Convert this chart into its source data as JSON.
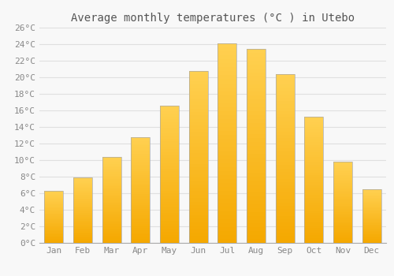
{
  "title": "Average monthly temperatures (°C ) in Utebo",
  "months": [
    "Jan",
    "Feb",
    "Mar",
    "Apr",
    "May",
    "Jun",
    "Jul",
    "Aug",
    "Sep",
    "Oct",
    "Nov",
    "Dec"
  ],
  "values": [
    6.3,
    7.9,
    10.4,
    12.8,
    16.6,
    20.8,
    24.1,
    23.4,
    20.4,
    15.2,
    9.8,
    6.5
  ],
  "bar_color_top": "#FFD050",
  "bar_color_bottom": "#F5A800",
  "bar_edge_color": "#AAAAAA",
  "ylim": [
    0,
    26
  ],
  "yticks": [
    0,
    2,
    4,
    6,
    8,
    10,
    12,
    14,
    16,
    18,
    20,
    22,
    24,
    26
  ],
  "ytick_labels": [
    "0°C",
    "2°C",
    "4°C",
    "6°C",
    "8°C",
    "10°C",
    "12°C",
    "14°C",
    "16°C",
    "18°C",
    "20°C",
    "22°C",
    "24°C",
    "26°C"
  ],
  "background_color": "#F8F8F8",
  "grid_color": "#E0E0E0",
  "title_fontsize": 10,
  "tick_fontsize": 8,
  "font_family": "monospace"
}
